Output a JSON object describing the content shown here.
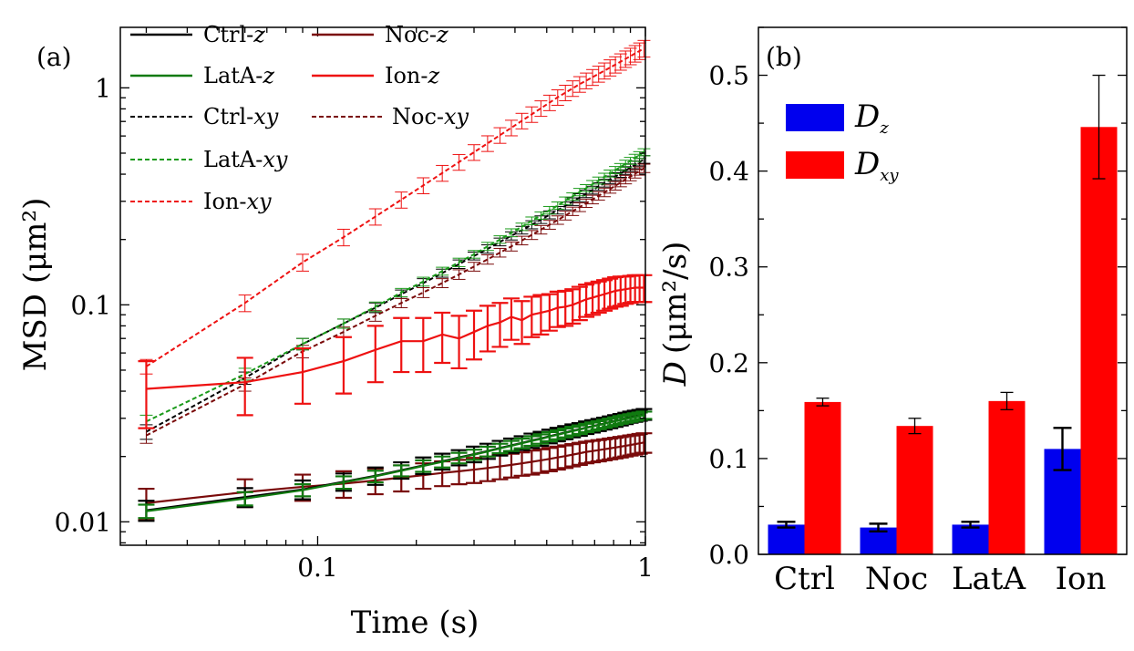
{
  "chart_data": [
    {
      "panel": "(a)",
      "type": "line",
      "scale": "log-log",
      "xlabel": "Time (s)",
      "ylabel": "MSD (μm²)",
      "xlim": [
        0.025,
        1.0
      ],
      "ylim": [
        0.0078,
        1.9
      ],
      "x_ticks": [
        {
          "v": 0.1,
          "label": "0.1"
        },
        {
          "v": 1,
          "label": "1"
        }
      ],
      "y_ticks": [
        {
          "v": 0.01,
          "label": "0.01"
        },
        {
          "v": 0.1,
          "label": "0.1"
        },
        {
          "v": 1,
          "label": "1"
        }
      ],
      "x": [
        0.03,
        0.06,
        0.09,
        0.12,
        0.15,
        0.18,
        0.21,
        0.24,
        0.27,
        0.3,
        0.33,
        0.36,
        0.39,
        0.42,
        0.45,
        0.48,
        0.51,
        0.54,
        0.57,
        0.6,
        0.63,
        0.66,
        0.69,
        0.72,
        0.75,
        0.78,
        0.81,
        0.84,
        0.87,
        0.9,
        0.93,
        0.96,
        0.99
      ],
      "series": [
        {
          "name": "Ctrl-z",
          "name_base": "Ctrl-",
          "name_var": "z",
          "color": "#000000",
          "style": "solid",
          "values": [
            0.0113,
            0.013,
            0.0141,
            0.0153,
            0.0163,
            0.0173,
            0.0182,
            0.019,
            0.0198,
            0.0205,
            0.0212,
            0.0219,
            0.0225,
            0.0231,
            0.0237,
            0.0242,
            0.0248,
            0.0253,
            0.0258,
            0.0263,
            0.0267,
            0.0272,
            0.0276,
            0.028,
            0.0284,
            0.0288,
            0.0292,
            0.0296,
            0.03,
            0.0304,
            0.0307,
            0.031,
            0.0313
          ],
          "errors": [
            0.0012,
            0.0013,
            0.0014,
            0.0014,
            0.0015,
            0.0015,
            0.0016,
            0.0016,
            0.0016,
            0.0017,
            0.0017,
            0.0017,
            0.0017,
            0.0017,
            0.0018,
            0.0018,
            0.0018,
            0.0018,
            0.0018,
            0.0018,
            0.0018,
            0.0018,
            0.0018,
            0.0018,
            0.0018,
            0.0018,
            0.0018,
            0.0018,
            0.0018,
            0.0018,
            0.0018,
            0.0018,
            0.0018
          ]
        },
        {
          "name": "Noc-z",
          "name_base": "Noc-",
          "name_var": "z",
          "color": "#7a0a0a",
          "style": "solid",
          "values": [
            0.0122,
            0.0137,
            0.0145,
            0.015,
            0.0155,
            0.016,
            0.0164,
            0.0168,
            0.0171,
            0.0174,
            0.0177,
            0.018,
            0.0183,
            0.0186,
            0.0189,
            0.0192,
            0.0195,
            0.0198,
            0.0201,
            0.0204,
            0.0207,
            0.021,
            0.0212,
            0.0214,
            0.0216,
            0.0218,
            0.022,
            0.0222,
            0.0224,
            0.0226,
            0.0228,
            0.023,
            0.0232
          ],
          "errors": [
            0.002,
            0.002,
            0.002,
            0.0021,
            0.0021,
            0.0022,
            0.0022,
            0.0022,
            0.0022,
            0.0023,
            0.0023,
            0.0023,
            0.0023,
            0.0023,
            0.0024,
            0.0024,
            0.0024,
            0.0024,
            0.0024,
            0.0024,
            0.0024,
            0.0024,
            0.0024,
            0.0024,
            0.0024,
            0.0024,
            0.0024,
            0.0024,
            0.0024,
            0.0024,
            0.0024,
            0.0024,
            0.0024
          ]
        },
        {
          "name": "LatA-z",
          "name_base": "LatA-",
          "name_var": "z",
          "color": "#107a10",
          "style": "solid",
          "values": [
            0.0112,
            0.0128,
            0.014,
            0.0152,
            0.0162,
            0.0172,
            0.0181,
            0.0189,
            0.0197,
            0.0204,
            0.0211,
            0.0218,
            0.0224,
            0.023,
            0.0236,
            0.0241,
            0.0247,
            0.0252,
            0.0257,
            0.0262,
            0.0266,
            0.0271,
            0.0275,
            0.0279,
            0.0283,
            0.0287,
            0.0291,
            0.0295,
            0.0298,
            0.0301,
            0.0304,
            0.0307,
            0.031
          ],
          "errors": [
            0.0008,
            0.0009,
            0.0009,
            0.001,
            0.001,
            0.001,
            0.0011,
            0.0011,
            0.0011,
            0.0011,
            0.0011,
            0.0011,
            0.0012,
            0.0012,
            0.0012,
            0.0012,
            0.0012,
            0.0012,
            0.0012,
            0.0012,
            0.0012,
            0.0012,
            0.0012,
            0.0012,
            0.0012,
            0.0012,
            0.0012,
            0.0012,
            0.0012,
            0.0012,
            0.0012,
            0.0012,
            0.0012
          ]
        },
        {
          "name": "Ion-z",
          "name_base": "Ion-",
          "name_var": "z",
          "color": "#ee1111",
          "style": "solid",
          "values": [
            0.041,
            0.044,
            0.049,
            0.055,
            0.062,
            0.068,
            0.068,
            0.073,
            0.07,
            0.075,
            0.08,
            0.083,
            0.088,
            0.085,
            0.09,
            0.092,
            0.094,
            0.097,
            0.098,
            0.1,
            0.103,
            0.106,
            0.108,
            0.11,
            0.112,
            0.114,
            0.116,
            0.117,
            0.118,
            0.119,
            0.12,
            0.12,
            0.12
          ],
          "errors": [
            0.014,
            0.013,
            0.014,
            0.016,
            0.018,
            0.019,
            0.019,
            0.019,
            0.019,
            0.019,
            0.019,
            0.019,
            0.019,
            0.019,
            0.019,
            0.019,
            0.018,
            0.018,
            0.018,
            0.018,
            0.018,
            0.018,
            0.018,
            0.018,
            0.018,
            0.018,
            0.018,
            0.018,
            0.017,
            0.017,
            0.017,
            0.017,
            0.017
          ]
        },
        {
          "name": "Ctrl-xy",
          "name_base": "Ctrl-",
          "name_var": "xy",
          "color": "#000000",
          "style": "dashed",
          "values": [
            0.026,
            0.046,
            0.066,
            0.082,
            0.097,
            0.112,
            0.126,
            0.14,
            0.154,
            0.168,
            0.181,
            0.195,
            0.208,
            0.221,
            0.234,
            0.247,
            0.26,
            0.273,
            0.286,
            0.299,
            0.312,
            0.325,
            0.338,
            0.351,
            0.364,
            0.377,
            0.39,
            0.403,
            0.416,
            0.429,
            0.442,
            0.455,
            0.468
          ],
          "errors": [
            0.002,
            0.003,
            0.004,
            0.004,
            0.005,
            0.005,
            0.006,
            0.006,
            0.007,
            0.007,
            0.008,
            0.008,
            0.009,
            0.009,
            0.01,
            0.01,
            0.011,
            0.011,
            0.012,
            0.012,
            0.013,
            0.013,
            0.014,
            0.014,
            0.015,
            0.015,
            0.016,
            0.016,
            0.017,
            0.017,
            0.018,
            0.018,
            0.019
          ]
        },
        {
          "name": "Noc-xy",
          "name_base": "Noc-",
          "name_var": "xy",
          "color": "#7a0a0a",
          "style": "dashed",
          "values": [
            0.025,
            0.043,
            0.061,
            0.075,
            0.089,
            0.102,
            0.114,
            0.126,
            0.138,
            0.15,
            0.162,
            0.174,
            0.186,
            0.198,
            0.21,
            0.222,
            0.234,
            0.246,
            0.258,
            0.27,
            0.282,
            0.294,
            0.306,
            0.318,
            0.33,
            0.342,
            0.354,
            0.366,
            0.378,
            0.39,
            0.402,
            0.414,
            0.426
          ],
          "errors": [
            0.002,
            0.003,
            0.004,
            0.004,
            0.005,
            0.005,
            0.006,
            0.006,
            0.007,
            0.007,
            0.008,
            0.008,
            0.009,
            0.009,
            0.01,
            0.01,
            0.011,
            0.011,
            0.012,
            0.012,
            0.013,
            0.013,
            0.014,
            0.014,
            0.015,
            0.015,
            0.016,
            0.016,
            0.017,
            0.017,
            0.018,
            0.018,
            0.019
          ]
        },
        {
          "name": "LatA-xy",
          "name_base": "LatA-",
          "name_var": "xy",
          "color": "#1a9a1a",
          "style": "dashed",
          "values": [
            0.029,
            0.048,
            0.066,
            0.082,
            0.098,
            0.114,
            0.128,
            0.143,
            0.157,
            0.171,
            0.186,
            0.2,
            0.215,
            0.229,
            0.244,
            0.258,
            0.273,
            0.287,
            0.302,
            0.316,
            0.331,
            0.345,
            0.36,
            0.374,
            0.389,
            0.403,
            0.418,
            0.432,
            0.447,
            0.461,
            0.476,
            0.49,
            0.505
          ],
          "errors": [
            0.002,
            0.003,
            0.004,
            0.004,
            0.005,
            0.005,
            0.006,
            0.006,
            0.007,
            0.007,
            0.008,
            0.008,
            0.009,
            0.009,
            0.01,
            0.01,
            0.011,
            0.011,
            0.012,
            0.012,
            0.013,
            0.013,
            0.014,
            0.014,
            0.015,
            0.015,
            0.016,
            0.016,
            0.017,
            0.017,
            0.018,
            0.018,
            0.019
          ]
        },
        {
          "name": "Ion-xy",
          "name_base": "Ion-",
          "name_var": "xy",
          "color": "#ee1111",
          "style": "dashed",
          "values": [
            0.052,
            0.102,
            0.157,
            0.205,
            0.255,
            0.305,
            0.355,
            0.405,
            0.455,
            0.505,
            0.555,
            0.605,
            0.655,
            0.705,
            0.755,
            0.805,
            0.855,
            0.905,
            0.95,
            0.995,
            1.04,
            1.08,
            1.12,
            1.16,
            1.2,
            1.24,
            1.28,
            1.32,
            1.36,
            1.4,
            1.44,
            1.48,
            1.52
          ],
          "errors": [
            0.004,
            0.009,
            0.014,
            0.018,
            0.022,
            0.026,
            0.03,
            0.034,
            0.038,
            0.042,
            0.046,
            0.05,
            0.054,
            0.058,
            0.062,
            0.066,
            0.07,
            0.074,
            0.078,
            0.082,
            0.086,
            0.09,
            0.094,
            0.098,
            0.102,
            0.106,
            0.11,
            0.114,
            0.118,
            0.122,
            0.126,
            0.13,
            0.134
          ]
        }
      ]
    },
    {
      "panel": "(b)",
      "type": "bar",
      "categories": [
        "Ctrl",
        "Noc",
        "LatA",
        "Ion"
      ],
      "ylabel_var": "D",
      "ylabel_unit": "(μm²/s)",
      "ylim": [
        0,
        0.55
      ],
      "y_ticks": [
        {
          "v": 0.0,
          "label": "0.0"
        },
        {
          "v": 0.1,
          "label": "0.1"
        },
        {
          "v": 0.2,
          "label": "0.2"
        },
        {
          "v": 0.3,
          "label": "0.3"
        },
        {
          "v": 0.4,
          "label": "0.4"
        },
        {
          "v": 0.5,
          "label": "0.5"
        }
      ],
      "series": [
        {
          "name": "Dz",
          "label_main": "D",
          "label_sub": "z",
          "color": "#0000ee",
          "values": [
            0.031,
            0.028,
            0.031,
            0.11
          ],
          "errors": [
            0.003,
            0.004,
            0.003,
            0.022
          ]
        },
        {
          "name": "Dxy",
          "label_main": "D",
          "label_sub": "xy",
          "color": "#ff0000",
          "values": [
            0.159,
            0.134,
            0.16,
            0.446
          ],
          "errors": [
            0.004,
            0.008,
            0.009,
            0.054
          ]
        }
      ]
    }
  ]
}
